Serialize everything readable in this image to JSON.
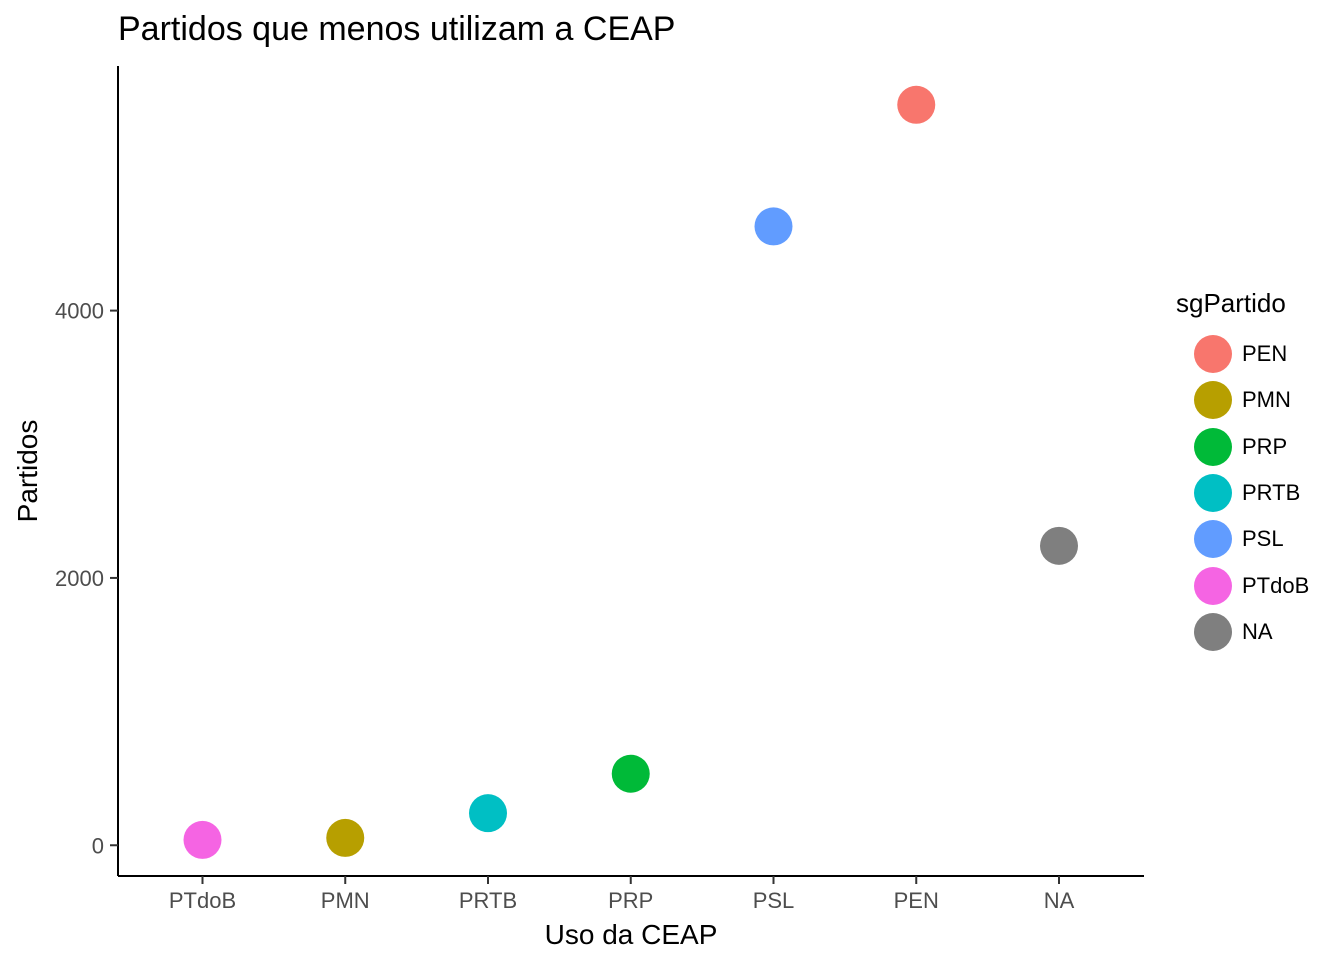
{
  "chart_data": {
    "type": "scatter",
    "title": "Partidos que menos utilizam a CEAP",
    "xlabel": "Uso da CEAP",
    "ylabel": "Partidos",
    "categories": [
      "PTdoB",
      "PMN",
      "PRTB",
      "PRP",
      "PSL",
      "PEN",
      "NA"
    ],
    "points": [
      {
        "x": "PTdoB",
        "y": 40,
        "group": "PTdoB"
      },
      {
        "x": "PMN",
        "y": 55,
        "group": "PMN"
      },
      {
        "x": "PRTB",
        "y": 240,
        "group": "PRTB"
      },
      {
        "x": "PRP",
        "y": 535,
        "group": "PRP"
      },
      {
        "x": "PSL",
        "y": 4630,
        "group": "PSL"
      },
      {
        "x": "PEN",
        "y": 5540,
        "group": "PEN"
      },
      {
        "x": "NA",
        "y": 2240,
        "group": "NA"
      }
    ],
    "yticks": [
      0,
      2000,
      4000
    ],
    "ylim": [
      -230,
      5830
    ],
    "grid": false,
    "legend": {
      "title": "sgPartido",
      "position": "right",
      "items": [
        {
          "label": "PEN",
          "color": "#F8766D"
        },
        {
          "label": "PMN",
          "color": "#B79F00"
        },
        {
          "label": "PRP",
          "color": "#00BA38"
        },
        {
          "label": "PRTB",
          "color": "#00BFC4"
        },
        {
          "label": "PSL",
          "color": "#619CFF"
        },
        {
          "label": "PTdoB",
          "color": "#F564E3"
        },
        {
          "label": "NA",
          "color": "#7F7F7F"
        }
      ]
    }
  }
}
